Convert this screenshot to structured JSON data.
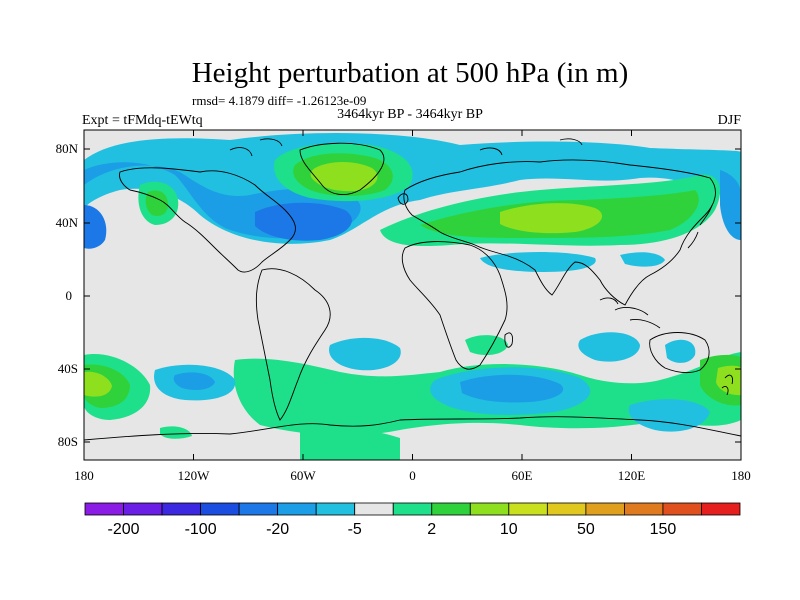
{
  "title": "Height perturbation at 500 hPa (in m)",
  "stats": "rmsd= 4.1879  diff= -1.26123e-09",
  "experiment": "Expt = tFMdq-tEWtq",
  "period": "3464kyr BP - 3464kyr BP",
  "season": "DJF",
  "lat_ticks": [
    "80N",
    "40N",
    "0",
    "40S",
    "80S"
  ],
  "lon_ticks": [
    "180",
    "120W",
    "60W",
    "0",
    "60E",
    "120E",
    "180"
  ],
  "colorbar": {
    "colors": [
      "#8a1ce6",
      "#6a1ee6",
      "#3b28e0",
      "#1b4ee0",
      "#1c78e6",
      "#1b9ee6",
      "#22c0e0",
      "#e6e6e6",
      "#1ee08a",
      "#30d23c",
      "#8ee01e",
      "#c8e01e",
      "#e0c81e",
      "#e0a01e",
      "#e07a1e",
      "#e0501e",
      "#e61e1e"
    ],
    "labels": [
      "-200",
      "-100",
      "-20",
      "-5",
      "2",
      "10",
      "50",
      "150"
    ]
  },
  "map_colors": {
    "land_neutral": "#e6e6e6",
    "c_blue1": "#22c0e0",
    "c_blue2": "#1b9ee6",
    "c_blue3": "#1c78e6",
    "c_green1": "#1ee08a",
    "c_green2": "#30d23c",
    "c_green3": "#8ee01e",
    "c_yellow": "#c8e01e"
  }
}
